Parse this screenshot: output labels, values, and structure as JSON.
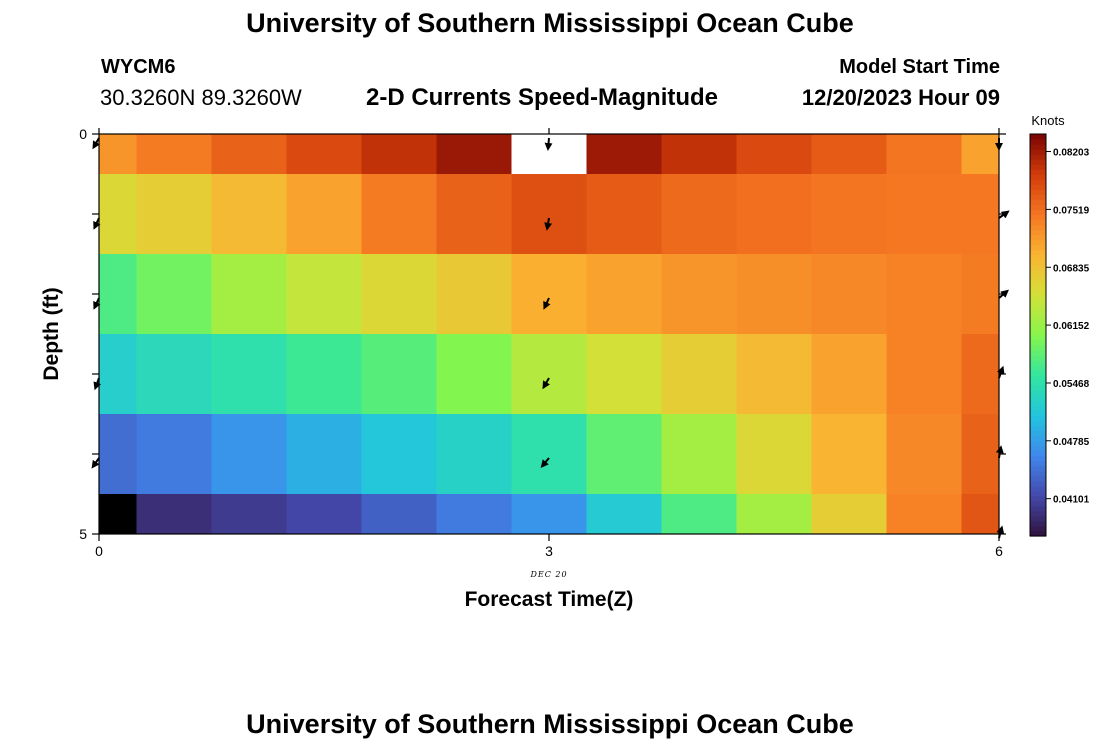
{
  "chart_data": {
    "type": "heatmap",
    "title": "University of Southern Mississippi Ocean Cube",
    "station": "WYCM6",
    "location": "30.3260N  89.3260W",
    "subtitle": "2-D Currents Speed-Magnitude",
    "model_start_label": "Model Start Time",
    "model_start_value": "12/20/2023 Hour 09",
    "xlabel": "Forecast Time(Z)",
    "ylabel": "Depth (ft)",
    "x_date_label": "DEC 20",
    "x_ticks": [
      "0",
      "3",
      "6"
    ],
    "y_ticks": [
      "0",
      "5"
    ],
    "xlim": [
      0,
      6
    ],
    "ylim": [
      0,
      5
    ],
    "colorbar_title": "Knots",
    "colorbar_ticks": [
      "0.08203",
      "0.07519",
      "0.06835",
      "0.06152",
      "0.05468",
      "0.04785",
      "0.04101"
    ],
    "colorbar_range": [
      0.0366,
      0.0841
    ],
    "columns": [
      0,
      0.5,
      1,
      1.5,
      2,
      2.5,
      3,
      3.5,
      4,
      4.5,
      5,
      5.5,
      6
    ],
    "values": [
      [
        0.0722,
        0.0742,
        0.0762,
        0.0782,
        0.0802,
        0.0824,
        null,
        0.0822,
        0.0802,
        0.0782,
        0.0767,
        0.0747,
        0.0712
      ],
      [
        0.0662,
        0.0672,
        0.0692,
        0.0712,
        0.0742,
        0.0762,
        0.0777,
        0.0767,
        0.0757,
        0.0752,
        0.0747,
        0.0745,
        0.0745
      ],
      [
        0.0572,
        0.0592,
        0.0622,
        0.0642,
        0.0662,
        0.0677,
        0.0702,
        0.0712,
        0.0722,
        0.0727,
        0.0732,
        0.0737,
        0.0742
      ],
      [
        0.0522,
        0.0537,
        0.0547,
        0.0562,
        0.0577,
        0.0602,
        0.0632,
        0.0652,
        0.0672,
        0.0692,
        0.0712,
        0.0737,
        0.0757
      ],
      [
        0.0442,
        0.0452,
        0.0472,
        0.0492,
        0.0512,
        0.0527,
        0.0547,
        0.0582,
        0.0622,
        0.0662,
        0.0697,
        0.0732,
        0.0762
      ],
      [
        0.0322,
        0.0392,
        0.0402,
        0.0412,
        0.0432,
        0.0452,
        0.0472,
        0.0517,
        0.0572,
        0.0622,
        0.0672,
        0.0737,
        0.0772
      ]
    ],
    "vector_columns": [
      0,
      3,
      6
    ],
    "vector_angles_deg": [
      [
        120,
        95,
        90
      ],
      [
        115,
        100,
        -35
      ],
      [
        115,
        115,
        -40
      ],
      [
        110,
        120,
        -70
      ],
      [
        125,
        130,
        -80
      ],
      [
        null,
        null,
        -75
      ]
    ],
    "footer_title": "University of Southern Mississippi Ocean Cube"
  },
  "colors": {
    "missing": "#ffffff",
    "below_range": "#000000",
    "axis": "#000000"
  }
}
